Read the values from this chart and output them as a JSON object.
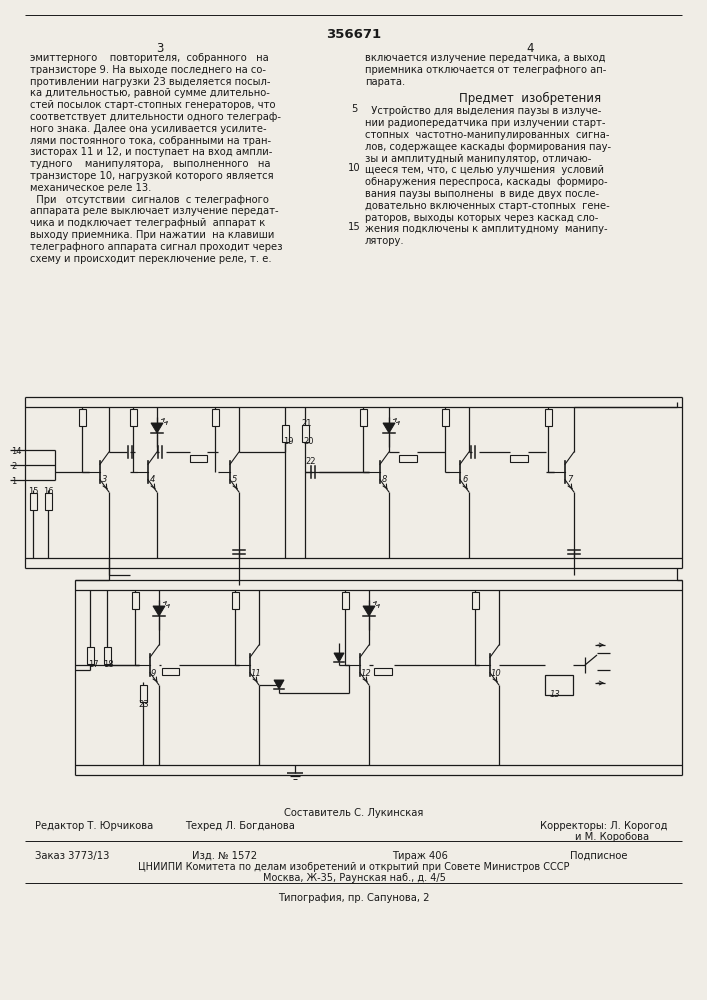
{
  "patent_number": "356671",
  "bg_color": "#f0ede6",
  "text_color": "#1a1a1a",
  "footer_sestavitel": "Составитель С. Лукинская",
  "footer_redaktor": "Редактор Т. Юрчикова",
  "footer_tehred": "Техред Л. Богданова",
  "footer_korrektory": "Корректоры: Л. Корогод",
  "footer_korr2": "и М. Коробова",
  "footer_zakaz": "Заказ 3773/13",
  "footer_izd": "Изд. № 1572",
  "footer_tirazh": "Тираж 406",
  "footer_podpisnoe": "Подписное",
  "footer_tsniipi": "ЦНИИПИ Комитета по делам изобретений и открытий при Совете Министров СССР",
  "footer_moskva": "Москва, Ж-35, Раунская наб., д. 4/5",
  "footer_tipografia": "Типография, пр. Сапунова, 2"
}
